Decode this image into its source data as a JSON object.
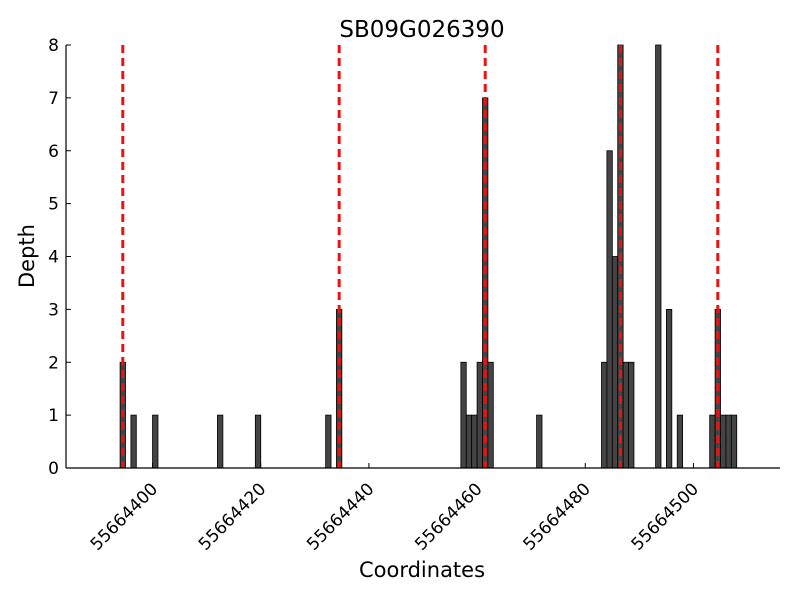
{
  "chart_data": {
    "type": "bar",
    "title": "SB09G026390",
    "x_label": "Coordinates",
    "y_label": "Depth",
    "series": [
      {
        "color": "#444444",
        "x": [
          55664394.5,
          55664396.5,
          55664400.5,
          55664412.5,
          55664419.5,
          55664432.5,
          55664434.5,
          55664457.5,
          55664458.5,
          55664459.5,
          55664460.5,
          55664461.5,
          55664462.5,
          55664471.5,
          55664483.5,
          55664484.5,
          55664485.5,
          55664486.5,
          55664487.5,
          55664488.5,
          55664493.5,
          55664495.5,
          55664497.5,
          55664503.5,
          55664504.5,
          55664505.5,
          55664506.5,
          55664507.5
        ],
        "values": [
          2,
          1,
          1,
          1,
          1,
          1,
          3,
          2,
          1,
          1,
          2,
          7,
          2,
          1,
          2,
          6,
          4,
          8,
          2,
          2,
          8,
          3,
          1,
          1,
          3,
          1,
          1,
          1
        ]
      }
    ],
    "vlines": {
      "color": "#ee1111",
      "x": [
        55664394.5,
        55664434.5,
        55664461.5,
        55664486.5,
        55664504.5
      ]
    },
    "xlim": [
      55664384,
      55664516
    ],
    "ylim": [
      0,
      8
    ],
    "xticks": [
      55664400,
      55664420,
      55664440,
      55664460,
      55664480,
      55664500
    ],
    "yticks": [
      0,
      1,
      2,
      3,
      4,
      5,
      6,
      7,
      8
    ]
  }
}
